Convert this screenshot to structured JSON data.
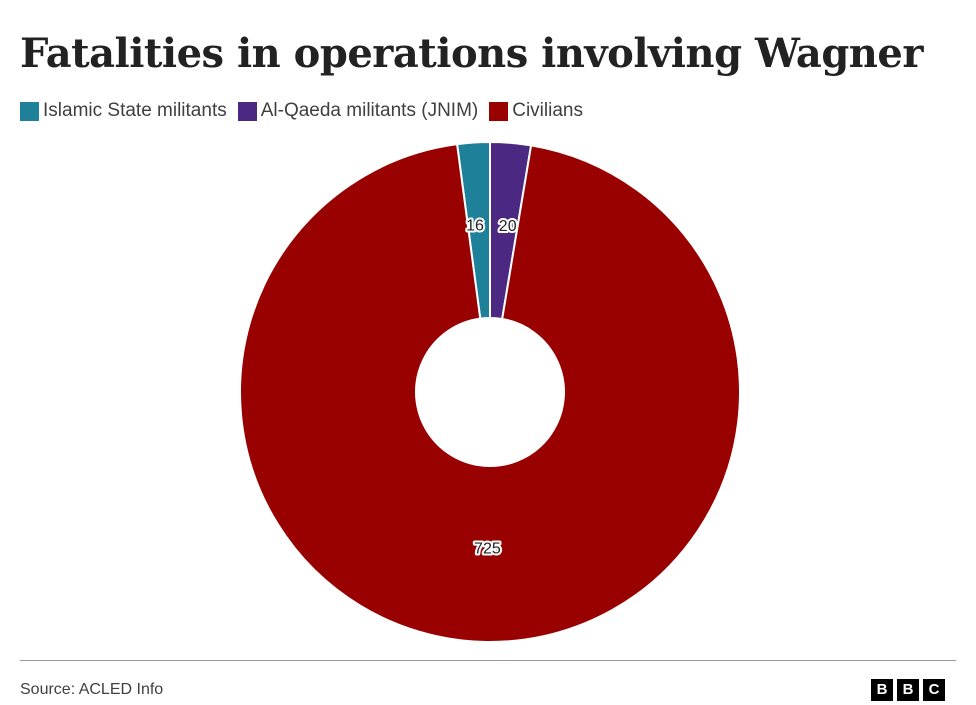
{
  "chart_data": {
    "type": "pie",
    "title": "Fatalities in operations involving Wagner",
    "donut": true,
    "legend_position": "top-left",
    "series": [
      {
        "name": "Islamic State militants",
        "value": 16,
        "color": "#1f8199"
      },
      {
        "name": "Al-Qaeda militants (JNIM)",
        "value": 20,
        "color": "#4b2882"
      },
      {
        "name": "Civilians",
        "value": 725,
        "color": "#990000"
      }
    ]
  },
  "footer": {
    "source": "Source: ACLED Info",
    "logo_letters": [
      "B",
      "B",
      "C"
    ]
  }
}
